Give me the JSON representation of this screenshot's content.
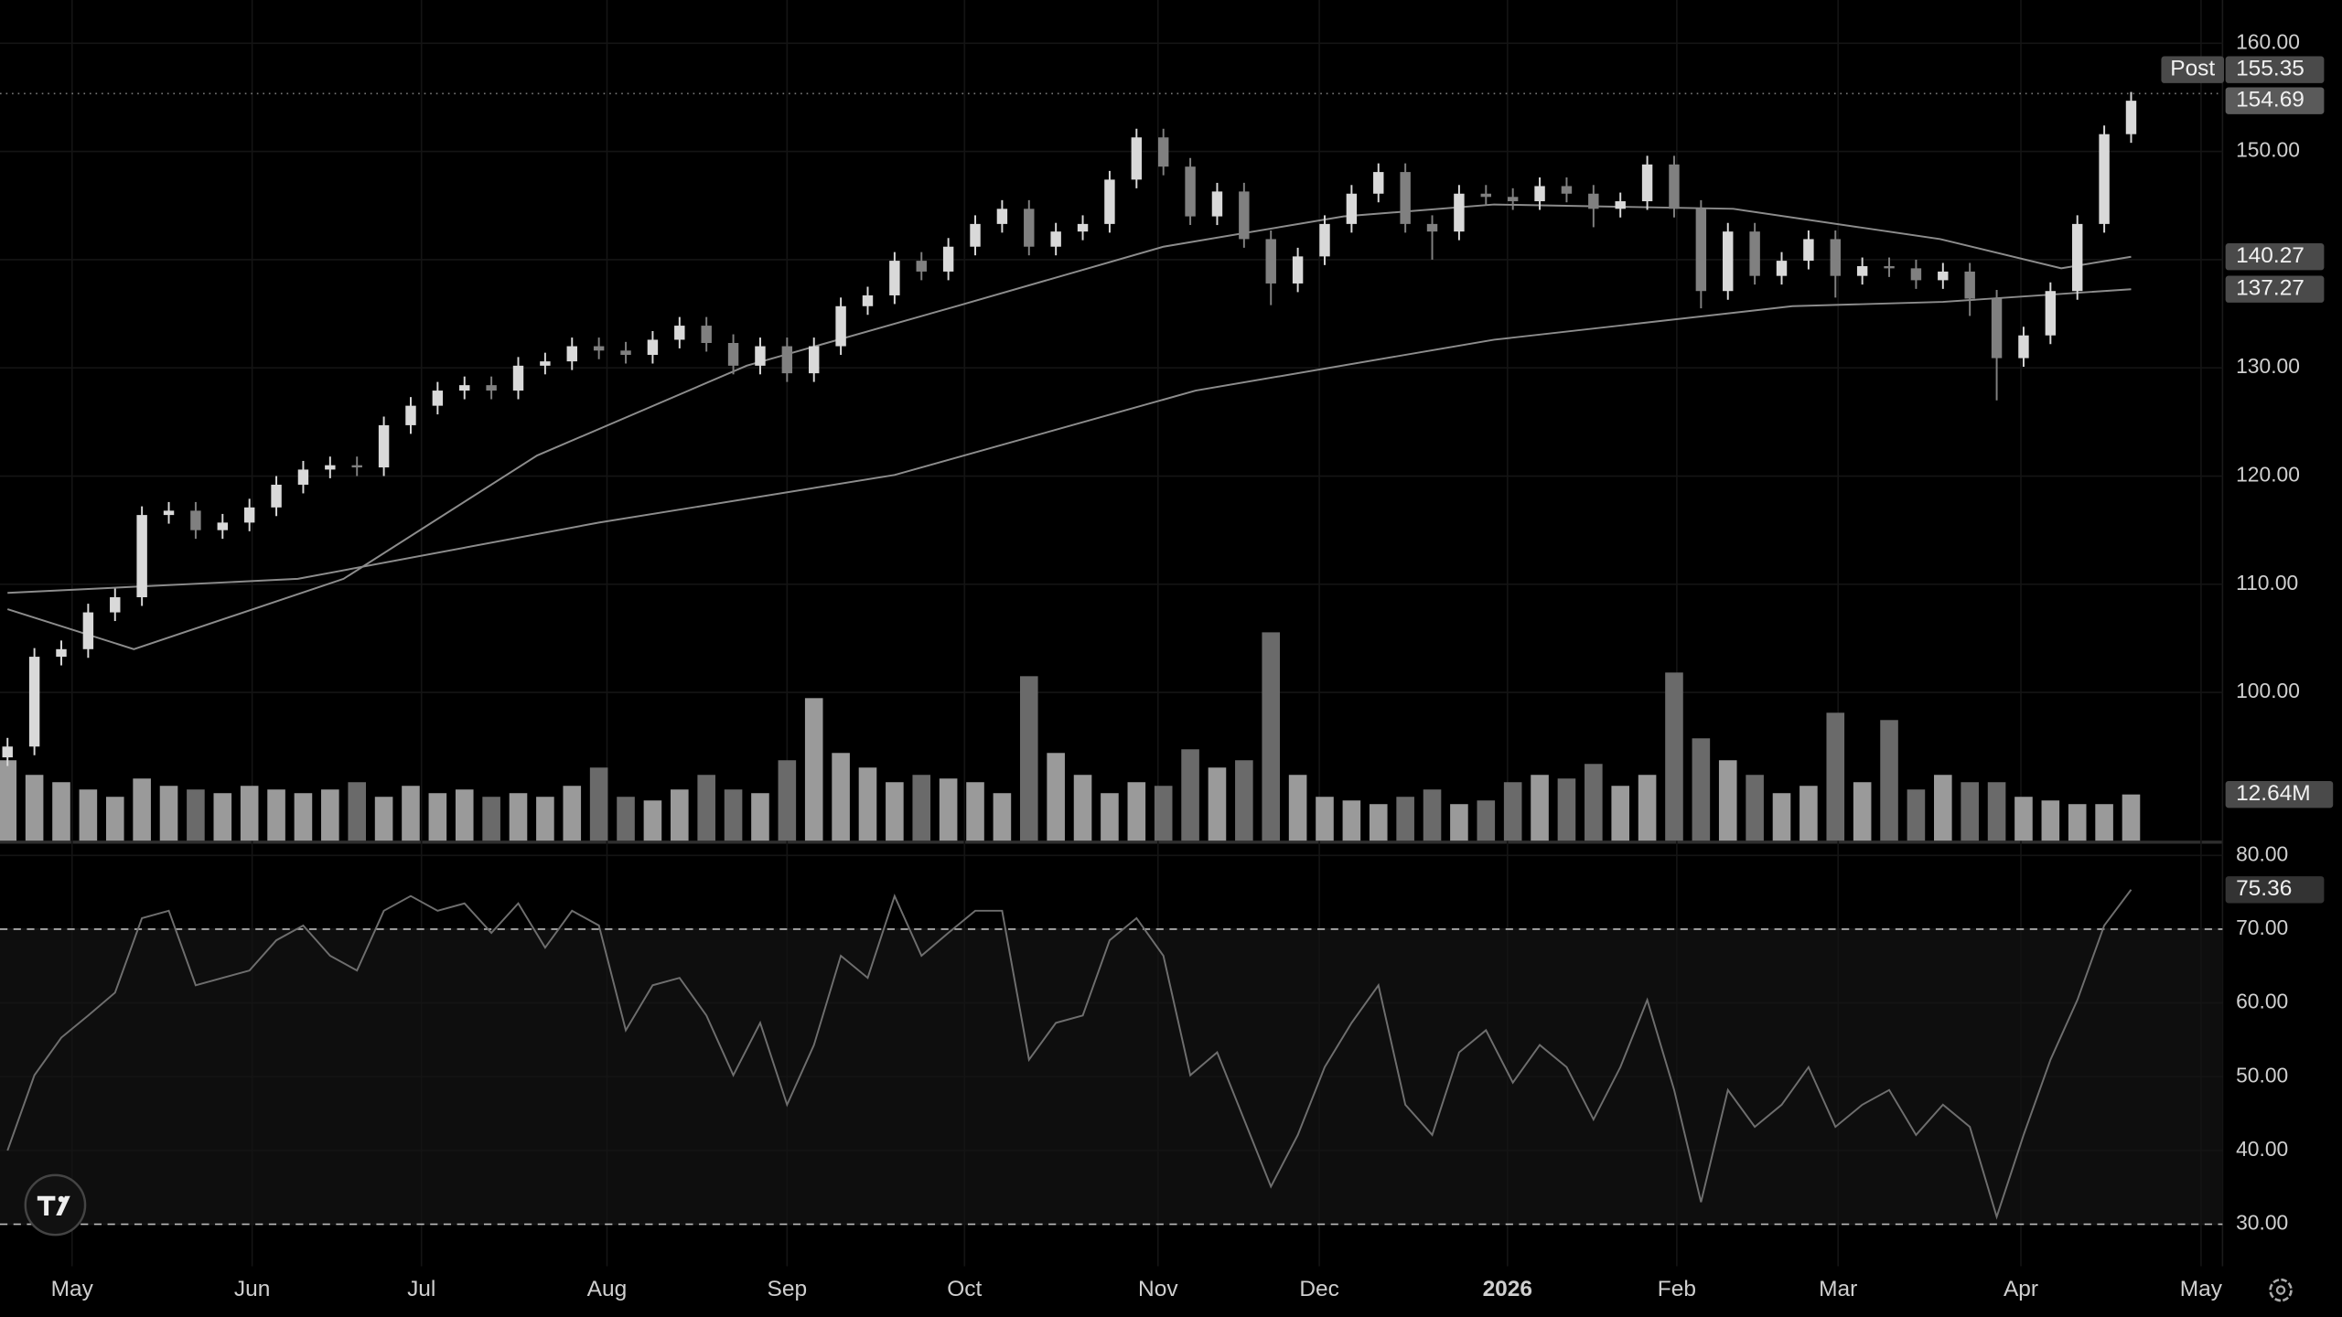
{
  "chart_data": {
    "type": "candlestick",
    "xlim": [
      -0.28,
      82.4
    ],
    "xticks": [
      {
        "value": 2.4,
        "label": "May"
      },
      {
        "value": 9.1,
        "label": "Jun"
      },
      {
        "value": 15.4,
        "label": "Jul"
      },
      {
        "value": 22.3,
        "label": "Aug"
      },
      {
        "value": 29.0,
        "label": "Sep"
      },
      {
        "value": 35.6,
        "label": "Oct"
      },
      {
        "value": 42.8,
        "label": "Nov"
      },
      {
        "value": 48.8,
        "label": "Dec"
      },
      {
        "value": 55.8,
        "label": "2026"
      },
      {
        "value": 62.1,
        "label": "Feb"
      },
      {
        "value": 68.1,
        "label": "Mar"
      },
      {
        "value": 74.9,
        "label": "Apr"
      },
      {
        "value": 81.6,
        "label": "May"
      }
    ],
    "ylim": [
      86.3,
      164
    ],
    "yticks": [
      {
        "value": 100,
        "label": "100.00"
      },
      {
        "value": 110,
        "label": "110.00"
      },
      {
        "value": 120,
        "label": "120.00"
      },
      {
        "value": 130,
        "label": "130.00"
      },
      {
        "value": 140,
        "label": "140.00"
      },
      {
        "value": 150,
        "label": "150.00"
      },
      {
        "value": 160,
        "label": "160.00"
      }
    ],
    "grid": true,
    "up_color": "#d9d9d9",
    "down_color": "#808080",
    "open": [
      94.0,
      95.0,
      103.3,
      104.0,
      107.4,
      108.8,
      116.4,
      116.8,
      115.0,
      115.7,
      117.1,
      119.2,
      120.6,
      121.0,
      120.8,
      124.7,
      126.5,
      127.9,
      128.4,
      127.9,
      130.2,
      130.6,
      132.0,
      131.6,
      131.2,
      132.6,
      133.9,
      132.3,
      130.2,
      132.0,
      129.5,
      132.0,
      135.7,
      136.7,
      139.9,
      138.9,
      141.2,
      143.3,
      144.7,
      141.2,
      142.6,
      143.3,
      147.4,
      151.3,
      148.6,
      144.0,
      146.3,
      141.9,
      137.8,
      140.3,
      143.3,
      146.1,
      148.1,
      143.3,
      142.6,
      146.1,
      145.8,
      145.4,
      146.8,
      146.1,
      144.7,
      145.4,
      148.8,
      144.7,
      137.1,
      142.6,
      138.5,
      139.9,
      141.9,
      138.5,
      139.4,
      139.2,
      138.1,
      138.9,
      136.4,
      130.9,
      133.0,
      137.1,
      143.3,
      151.6
    ],
    "high": [
      95.8,
      104.1,
      104.8,
      108.2,
      109.6,
      117.2,
      117.6,
      117.6,
      116.5,
      117.9,
      120.0,
      121.4,
      121.8,
      121.8,
      125.5,
      127.3,
      128.7,
      129.2,
      129.2,
      131.0,
      131.4,
      132.8,
      132.8,
      132.4,
      133.4,
      134.7,
      134.7,
      133.1,
      132.8,
      132.8,
      132.8,
      136.5,
      137.5,
      140.7,
      140.7,
      142.0,
      144.1,
      145.5,
      145.5,
      143.4,
      144.1,
      148.2,
      152.1,
      152.1,
      149.4,
      147.1,
      147.1,
      142.7,
      141.1,
      144.1,
      146.9,
      148.9,
      148.9,
      144.1,
      146.9,
      146.9,
      146.6,
      147.6,
      147.6,
      146.9,
      146.2,
      149.6,
      149.6,
      145.5,
      143.4,
      143.4,
      140.7,
      142.7,
      142.7,
      140.2,
      140.2,
      140.0,
      139.7,
      139.7,
      137.2,
      133.8,
      137.9,
      144.1,
      152.4,
      155.5
    ],
    "low": [
      93.2,
      94.2,
      102.5,
      103.2,
      106.6,
      108.0,
      115.6,
      114.2,
      114.2,
      114.9,
      116.3,
      118.4,
      119.8,
      120.0,
      120.0,
      123.9,
      125.7,
      127.1,
      127.1,
      127.1,
      129.4,
      129.8,
      130.8,
      130.4,
      130.4,
      131.8,
      131.5,
      129.4,
      129.4,
      128.7,
      128.7,
      131.2,
      134.9,
      135.9,
      138.1,
      138.1,
      140.4,
      142.5,
      140.4,
      140.4,
      141.8,
      142.5,
      146.6,
      147.8,
      143.2,
      143.2,
      141.1,
      135.8,
      137.0,
      139.5,
      142.5,
      145.3,
      142.5,
      140.0,
      141.8,
      145.0,
      144.6,
      144.6,
      145.3,
      143.0,
      143.9,
      144.6,
      143.9,
      135.5,
      136.3,
      137.7,
      137.7,
      139.1,
      136.5,
      137.7,
      138.4,
      137.3,
      137.3,
      134.8,
      127.0,
      130.1,
      132.2,
      136.3,
      142.5,
      150.8
    ],
    "close": [
      95.0,
      103.3,
      104.0,
      107.4,
      108.8,
      116.4,
      116.8,
      115.0,
      115.7,
      117.1,
      119.2,
      120.6,
      121.0,
      120.8,
      124.7,
      126.5,
      127.9,
      128.4,
      127.9,
      130.2,
      130.6,
      132.0,
      131.6,
      131.2,
      132.6,
      133.9,
      132.3,
      130.2,
      132.0,
      129.5,
      132.0,
      135.7,
      136.7,
      139.9,
      138.9,
      141.2,
      143.3,
      144.7,
      141.2,
      142.6,
      143.3,
      147.4,
      151.3,
      148.6,
      144.0,
      146.3,
      141.9,
      137.8,
      140.3,
      143.3,
      146.1,
      148.1,
      143.3,
      142.6,
      146.1,
      145.8,
      145.4,
      146.8,
      146.1,
      144.7,
      145.4,
      148.8,
      144.7,
      137.1,
      142.6,
      138.5,
      139.9,
      141.9,
      138.5,
      139.4,
      139.2,
      138.1,
      138.9,
      136.4,
      130.9,
      133.0,
      137.1,
      143.3,
      151.6,
      154.69
    ],
    "post": {
      "label": "Post",
      "value": 155.35
    },
    "moving_averages": [
      {
        "color": "#8c8c8c",
        "x": [
          0,
          4.7,
          12.5,
          19.7,
          27.5,
          35.3,
          43,
          49.7,
          55.3,
          64.2,
          71.9,
          76.4,
          79
        ],
        "values": [
          107.7,
          104.0,
          110.5,
          121.9,
          130.2,
          135.7,
          141.2,
          144.0,
          145.1,
          144.7,
          141.9,
          139.2,
          140.27
        ]
      },
      {
        "color": "#8c8c8c",
        "x": [
          0,
          10.8,
          22,
          33,
          44.2,
          55.3,
          66.4,
          72,
          79
        ],
        "values": [
          109.2,
          110.5,
          115.7,
          120.1,
          127.9,
          132.6,
          135.7,
          136.1,
          137.27
        ]
      }
    ],
    "volume": {
      "ylim": [
        0,
        230
      ],
      "values": [
        22,
        18,
        16,
        14,
        12,
        17,
        15,
        14,
        13,
        15,
        14,
        13,
        14,
        16,
        12,
        15,
        13,
        14,
        12,
        13,
        12,
        15,
        20,
        12,
        11,
        14,
        18,
        14,
        13,
        22,
        39,
        24,
        20,
        16,
        18,
        17,
        16,
        13,
        45,
        24,
        18,
        13,
        16,
        15,
        25,
        20,
        22,
        57,
        18,
        12,
        11,
        10,
        12,
        14,
        10,
        11,
        16,
        18,
        17,
        21,
        15,
        18,
        46,
        28,
        22,
        18,
        13,
        15,
        35,
        16,
        33,
        14,
        18,
        16,
        16,
        12,
        11,
        10,
        10,
        12.64
      ],
      "value_labels": [
        null,
        null,
        null,
        null,
        null,
        null,
        null,
        null,
        null,
        null,
        null,
        null,
        null,
        null,
        null,
        null,
        null,
        null,
        null,
        null,
        null,
        null,
        null,
        null,
        null,
        null,
        null,
        null,
        null,
        null,
        null,
        null,
        null,
        null,
        null,
        null,
        null,
        null,
        null,
        null,
        null,
        null,
        null,
        null,
        null,
        null,
        null,
        null,
        null,
        null,
        null,
        null,
        null,
        null,
        null,
        null,
        null,
        null,
        null,
        null,
        null,
        null,
        null,
        null,
        null,
        null,
        null,
        null,
        null,
        null,
        null,
        null,
        null,
        null,
        null,
        null,
        null,
        null,
        null,
        "12.64M"
      ]
    },
    "rsi": {
      "color": "#6e6e6e",
      "ylim": [
        24.3,
        81.6
      ],
      "yticks": [
        {
          "value": 30,
          "label": "30.00"
        },
        {
          "value": 40,
          "label": "40.00"
        },
        {
          "value": 50,
          "label": "50.00"
        },
        {
          "value": 60,
          "label": "60.00"
        },
        {
          "value": 70,
          "label": "70.00"
        },
        {
          "value": 80,
          "label": "80.00"
        }
      ],
      "bands": [
        30,
        70
      ],
      "values": [
        40,
        50.2,
        55.3,
        58.3,
        61.4,
        71.5,
        72.5,
        62.4,
        63.4,
        64.4,
        68.5,
        70.5,
        66.4,
        64.4,
        72.5,
        74.5,
        72.5,
        73.5,
        69.5,
        73.5,
        67.5,
        72.5,
        70.5,
        56.3,
        62.4,
        63.4,
        58.3,
        50.2,
        57.3,
        46.2,
        54.3,
        66.4,
        63.4,
        74.5,
        66.4,
        69.5,
        72.5,
        72.5,
        52.3,
        57.3,
        58.3,
        68.5,
        71.5,
        66.4,
        50.2,
        53.3,
        44.2,
        35.1,
        42.1,
        51.3,
        57.3,
        62.4,
        46.2,
        42.1,
        53.3,
        56.3,
        49.2,
        54.3,
        51.3,
        44.2,
        51.3,
        60.4,
        48.2,
        33.0,
        48.2,
        43.2,
        46.2,
        51.3,
        43.2,
        46.2,
        48.2,
        42.1,
        46.2,
        43.2,
        31.0,
        42.1,
        52.3,
        60.4,
        70.5,
        75.36
      ]
    }
  }
}
